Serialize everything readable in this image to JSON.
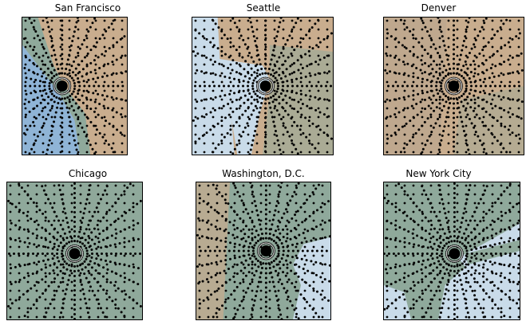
{
  "chart_data": [
    {
      "type": "map",
      "title": "San Francisco",
      "grid": false,
      "legend": "none",
      "terrain": "coastal-hills",
      "dot_color": "#000000"
    },
    {
      "type": "map",
      "title": "Seattle",
      "grid": false,
      "legend": "none",
      "terrain": "sound-and-mountains",
      "dot_color": "#000000"
    },
    {
      "type": "map",
      "title": "Denver",
      "grid": false,
      "legend": "none",
      "terrain": "plains-and-mountains",
      "dot_color": "#000000"
    },
    {
      "type": "map",
      "title": "Chicago",
      "grid": false,
      "legend": "none",
      "terrain": "lake",
      "dot_color": "#000000"
    },
    {
      "type": "map",
      "title": "Washington, D.C.",
      "grid": false,
      "legend": "none",
      "terrain": "bay-and-ridges",
      "dot_color": "#000000"
    },
    {
      "type": "map",
      "title": "New York City",
      "grid": false,
      "legend": "none",
      "terrain": "harbor",
      "dot_color": "#000000"
    }
  ],
  "colors": {
    "water_light": "#c9dbe9",
    "water_dark": "#8fb4d6",
    "land_green": "#8fa99b",
    "land_tan": "#c9ad8e",
    "dots": "#000000"
  }
}
